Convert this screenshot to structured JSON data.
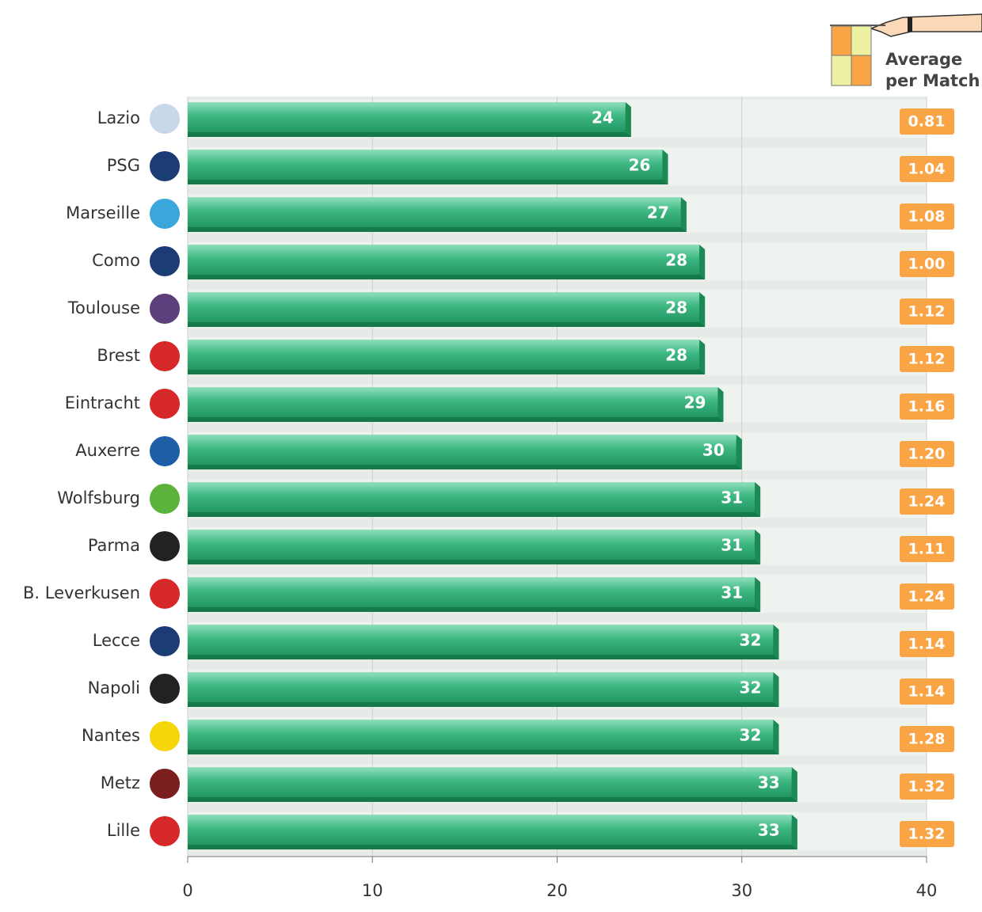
{
  "chart_data": {
    "type": "bar",
    "orientation": "horizontal",
    "categories": [
      "Lazio",
      "PSG",
      "Marseille",
      "Como",
      "Toulouse",
      "Brest",
      "Eintracht",
      "Auxerre",
      "Wolfsburg",
      "Parma",
      "B. Leverkusen",
      "Lecce",
      "Napoli",
      "Nantes",
      "Metz",
      "Lille"
    ],
    "values": [
      24,
      26,
      27,
      28,
      28,
      28,
      29,
      30,
      31,
      31,
      31,
      32,
      32,
      32,
      33,
      33
    ],
    "color": "#2e9e68",
    "xlim": [
      0,
      40
    ],
    "xticks": [
      0,
      10,
      20,
      30,
      40
    ],
    "grid": true,
    "averages": {
      "name": "Average per Match",
      "color": "#f9a546",
      "values": [
        0.81,
        1.04,
        1.08,
        1.0,
        1.12,
        1.12,
        1.16,
        1.2,
        1.24,
        1.11,
        1.24,
        1.14,
        1.14,
        1.28,
        1.32,
        1.32
      ],
      "value_labels": [
        "0.81",
        "1.04",
        "1.08",
        "1.00",
        "1.12",
        "1.12",
        "1.16",
        "1.20",
        "1.24",
        "1.11",
        "1.24",
        "1.14",
        "1.14",
        "1.28",
        "1.32",
        "1.32"
      ]
    }
  }
}
